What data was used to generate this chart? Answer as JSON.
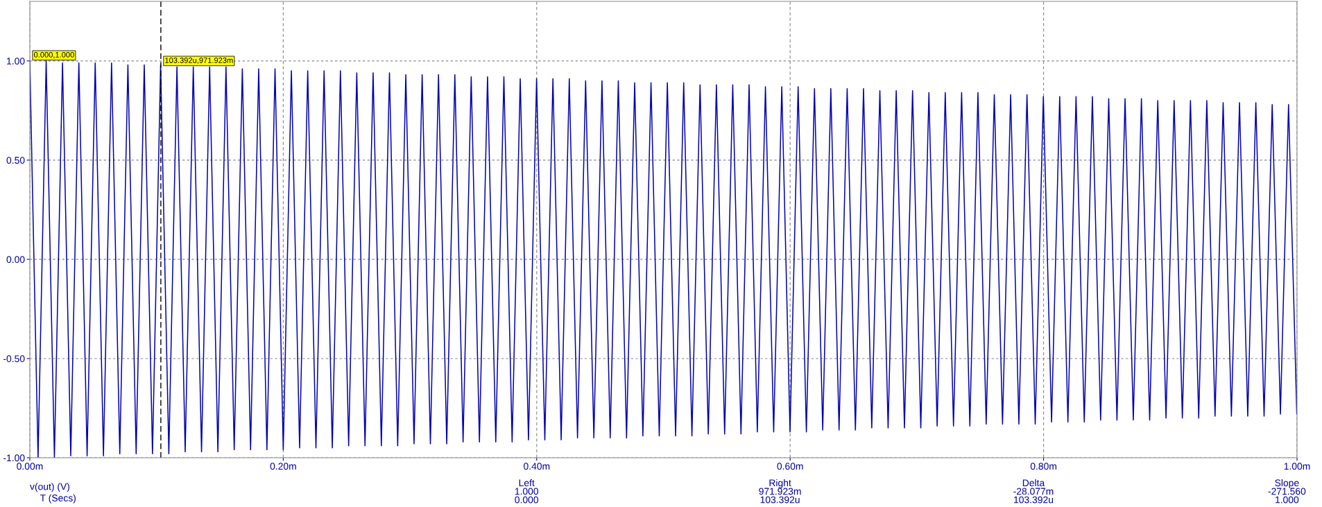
{
  "chart_data": {
    "type": "line",
    "xlabel": "T (Secs)",
    "x": [
      0,
      0.0065,
      0.0129,
      0.0194,
      0.0258,
      0.0323,
      0.0387,
      0.0452,
      0.0516,
      0.0581,
      0.0645,
      0.071,
      0.0774,
      0.0839,
      0.0903,
      0.0968,
      0.1032,
      0.1097,
      0.1161,
      0.1226,
      0.129,
      0.1355,
      0.1419,
      0.1484,
      0.1548,
      0.1613,
      0.1677,
      0.1742,
      0.1806,
      0.1871,
      0.1935,
      0.2,
      0.2064,
      0.2129,
      0.2193,
      0.2258,
      0.2322,
      0.2387,
      0.2451,
      0.2516,
      0.258,
      0.2645,
      0.2709,
      0.2774,
      0.2838,
      0.2903,
      0.2967,
      0.3032,
      0.3096,
      0.3161,
      0.3225,
      0.329,
      0.3354,
      0.3419,
      0.3483,
      0.3548,
      0.3612,
      0.3677,
      0.3741,
      0.3806,
      0.387,
      0.3935,
      0.3999,
      0.4064,
      0.4128,
      0.4193,
      0.4257,
      0.4322,
      0.4386,
      0.4451,
      0.4515,
      0.458,
      0.4644,
      0.4709,
      0.4773,
      0.4838,
      0.4902,
      0.4967,
      0.5031,
      0.5096,
      0.516,
      0.5225,
      0.5289,
      0.5354,
      0.5418,
      0.5483,
      0.5547,
      0.5612,
      0.5676,
      0.5741,
      0.5805,
      0.587,
      0.5934,
      0.5999,
      0.6063,
      0.6128,
      0.6192,
      0.6257,
      0.6321,
      0.6386,
      0.645,
      0.6515,
      0.6579,
      0.6644,
      0.6708,
      0.6773,
      0.6837,
      0.6902,
      0.6966,
      0.7031,
      0.7095,
      0.716,
      0.7224,
      0.7289,
      0.7353,
      0.7418,
      0.7482,
      0.7547,
      0.7611,
      0.7676,
      0.774,
      0.7805,
      0.7869,
      0.7934,
      0.7998,
      0.8063,
      0.8127,
      0.8192,
      0.8256,
      0.8321,
      0.8385,
      0.845,
      0.8514,
      0.8579,
      0.8643,
      0.8708,
      0.8772,
      0.8837,
      0.8901,
      0.8966,
      0.903,
      0.9095,
      0.9159,
      0.9224,
      0.9288,
      0.9353,
      0.9417,
      0.9482,
      0.9546,
      0.9611,
      0.9675,
      0.974,
      0.9804,
      0.9869,
      0.9933,
      0.9998
    ],
    "series": [
      {
        "name": "v(out) (V)",
        "color": "#0000b4",
        "values": [
          1,
          -1,
          1,
          -1,
          0.99,
          -0.99,
          0.99,
          -0.99,
          0.99,
          -0.99,
          0.99,
          -0.98,
          0.98,
          -0.98,
          0.98,
          -0.98,
          0.98,
          -0.98,
          0.97,
          -0.97,
          0.97,
          -0.97,
          0.97,
          -0.97,
          0.97,
          -0.96,
          0.96,
          -0.96,
          0.96,
          -0.96,
          0.96,
          -0.96,
          0.95,
          -0.95,
          0.95,
          -0.95,
          0.95,
          -0.95,
          0.95,
          -0.94,
          0.94,
          -0.94,
          0.94,
          -0.94,
          0.94,
          -0.94,
          0.93,
          -0.93,
          0.93,
          -0.93,
          0.93,
          -0.93,
          0.93,
          -0.92,
          0.92,
          -0.92,
          0.92,
          -0.92,
          0.92,
          -0.92,
          0.91,
          -0.91,
          0.91,
          -0.91,
          0.91,
          -0.91,
          0.91,
          -0.9,
          0.9,
          -0.9,
          0.9,
          -0.9,
          0.9,
          -0.9,
          0.89,
          -0.89,
          0.89,
          -0.89,
          0.89,
          -0.89,
          0.89,
          -0.89,
          0.88,
          -0.88,
          0.88,
          -0.88,
          0.88,
          -0.88,
          0.88,
          -0.87,
          0.87,
          -0.87,
          0.87,
          -0.87,
          0.87,
          -0.87,
          0.86,
          -0.86,
          0.86,
          -0.86,
          0.86,
          -0.86,
          0.86,
          -0.85,
          0.85,
          -0.85,
          0.85,
          -0.85,
          0.85,
          -0.85,
          0.84,
          -0.84,
          0.84,
          -0.84,
          0.84,
          -0.84,
          0.84,
          -0.83,
          0.83,
          -0.83,
          0.83,
          -0.83,
          0.83,
          -0.83,
          0.82,
          -0.82,
          0.82,
          -0.82,
          0.82,
          -0.82,
          0.82,
          -0.81,
          0.81,
          -0.81,
          0.81,
          -0.81,
          0.81,
          -0.81,
          0.8,
          -0.8,
          0.8,
          -0.8,
          0.8,
          -0.8,
          0.8,
          -0.79,
          0.79,
          -0.79,
          0.79,
          -0.79,
          0.79,
          -0.79,
          0.78,
          -0.78,
          0.78,
          -0.78
        ]
      }
    ],
    "xlim": [
      0,
      1
    ],
    "xticks": [
      {
        "value": 0,
        "label": "0.00m"
      },
      {
        "value": 0.2,
        "label": "0.20m"
      },
      {
        "value": 0.4,
        "label": "0.40m"
      },
      {
        "value": 0.6,
        "label": "0.60m"
      },
      {
        "value": 0.8,
        "label": "0.80m"
      },
      {
        "value": 1,
        "label": "1.00m"
      }
    ],
    "ylim": [
      -1,
      1.3
    ],
    "yticks": [
      {
        "value": -1,
        "label": "-1.00"
      },
      {
        "value": -0.5,
        "label": "-0.50"
      },
      {
        "value": 0,
        "label": "0.00"
      },
      {
        "value": 0.5,
        "label": "0.50"
      },
      {
        "value": 1,
        "label": "1.00"
      }
    ],
    "grid": true,
    "line_style": "solid",
    "marker": "none",
    "ref_lines": [
      {
        "axis": "x",
        "value": 0.103392,
        "color": "#000000",
        "line_style": "dashed"
      }
    ],
    "annotations": [
      {
        "text": "0.000,1.000",
        "x": 0,
        "y": 1
      },
      {
        "text": "103.392u,971.923m",
        "x": 0.103392,
        "y": 0.971923
      },
      "Left",
      "1.000",
      "0.000",
      "Right",
      "971.923m",
      "103.392u",
      "Delta",
      "-28.077m",
      "103.392u",
      "Slope",
      "-271.560",
      "1.000"
    ]
  }
}
